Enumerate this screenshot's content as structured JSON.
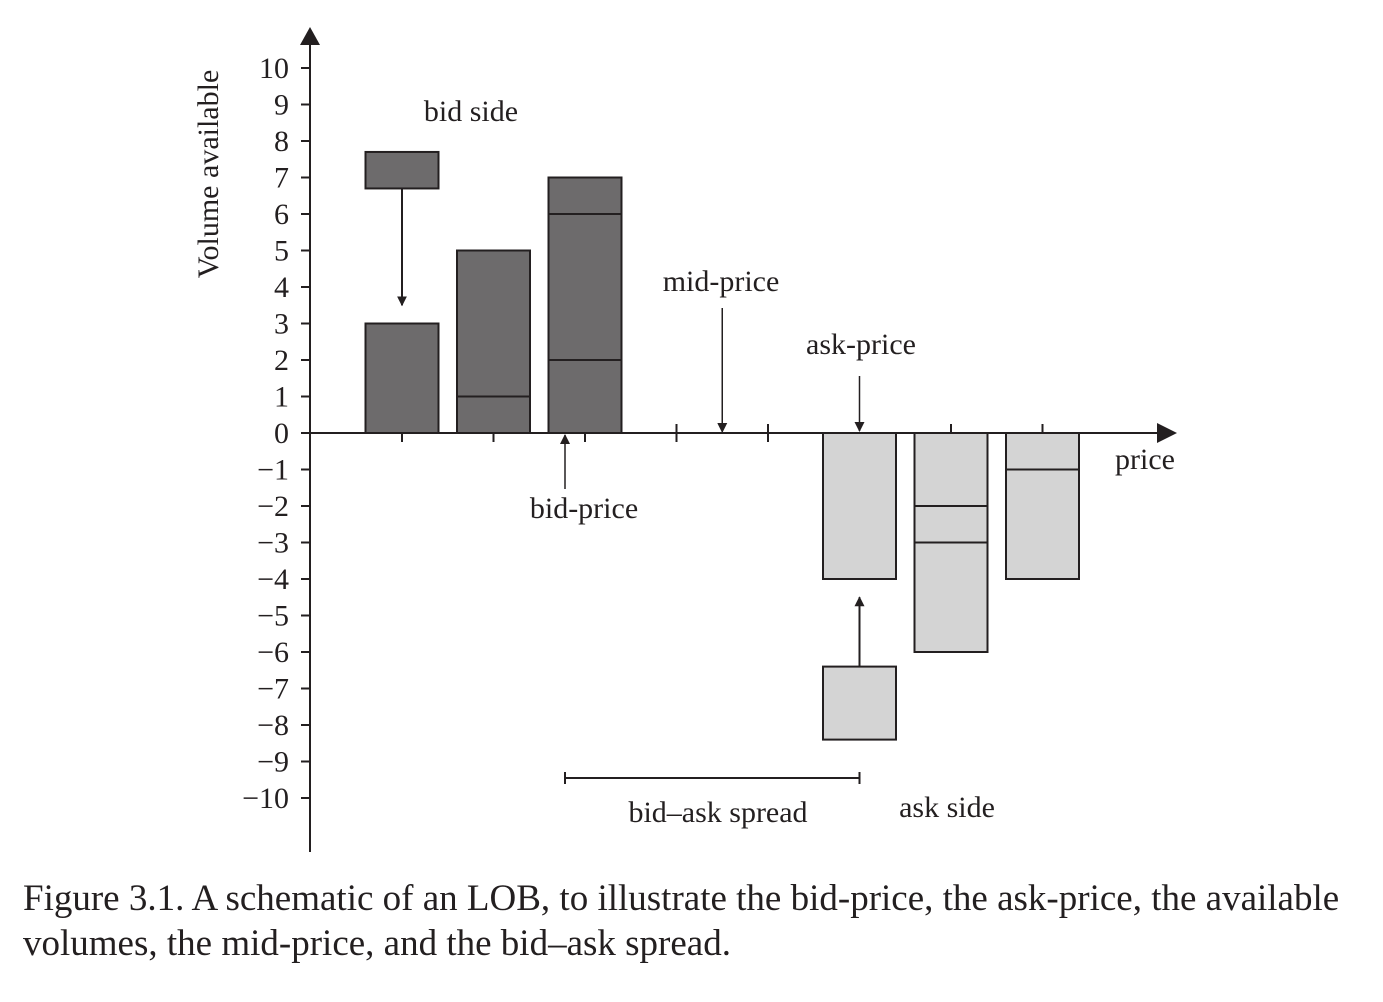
{
  "chart_data": {
    "type": "bar",
    "ylabel": "Volume available",
    "xlabel": "price",
    "ylim": [
      -10,
      10
    ],
    "y_ticks": [
      10,
      9,
      8,
      7,
      6,
      5,
      4,
      3,
      2,
      1,
      0,
      -1,
      -2,
      -3,
      -4,
      -5,
      -6,
      -7,
      -8,
      -9,
      -10
    ],
    "y_tick_labels": [
      "10",
      "9",
      "8",
      "7",
      "6",
      "5",
      "4",
      "3",
      "2",
      "1",
      "0",
      "−1",
      "−2",
      "−3",
      "−4",
      "−5",
      "−6",
      "−7",
      "−8",
      "−9",
      "−10"
    ],
    "price_levels": 8,
    "bars": [
      {
        "price_level": 1,
        "side": "bid",
        "value": 3,
        "segments": [
          3
        ]
      },
      {
        "price_level": 2,
        "side": "bid",
        "value": 5,
        "segments": [
          1,
          4
        ]
      },
      {
        "price_level": 3,
        "side": "bid",
        "value": 7,
        "segments": [
          2,
          4,
          1
        ]
      },
      {
        "price_level": 6,
        "side": "ask",
        "value": -4,
        "segments": [
          -4
        ]
      },
      {
        "price_level": 7,
        "side": "ask",
        "value": -6,
        "segments": [
          -2,
          -1,
          -3
        ]
      },
      {
        "price_level": 8,
        "side": "ask",
        "value": -4,
        "segments": [
          -1,
          -3
        ]
      }
    ],
    "incoming_orders": [
      {
        "side": "bid",
        "price_level": 1,
        "low": 6.7,
        "high": 7.7,
        "arrow_to": 3.5
      },
      {
        "side": "ask",
        "price_level": 6,
        "low": -8.4,
        "high": -6.4,
        "arrow_to": -4.5
      }
    ],
    "annotations": {
      "bid_side": "bid side",
      "ask_side": "ask side",
      "mid_price": "mid-price",
      "ask_price": "ask-price",
      "bid_price": "bid-price",
      "spread": "bid–ask spread"
    },
    "colors": {
      "bid": "#6d6b6c",
      "ask": "#d4d4d4",
      "stroke": "#231f20"
    }
  },
  "caption": "Figure 3.1.  A schematic of an LOB, to illustrate the bid-price, the ask-price, the available volumes, the mid-price, and the bid–ask spread."
}
